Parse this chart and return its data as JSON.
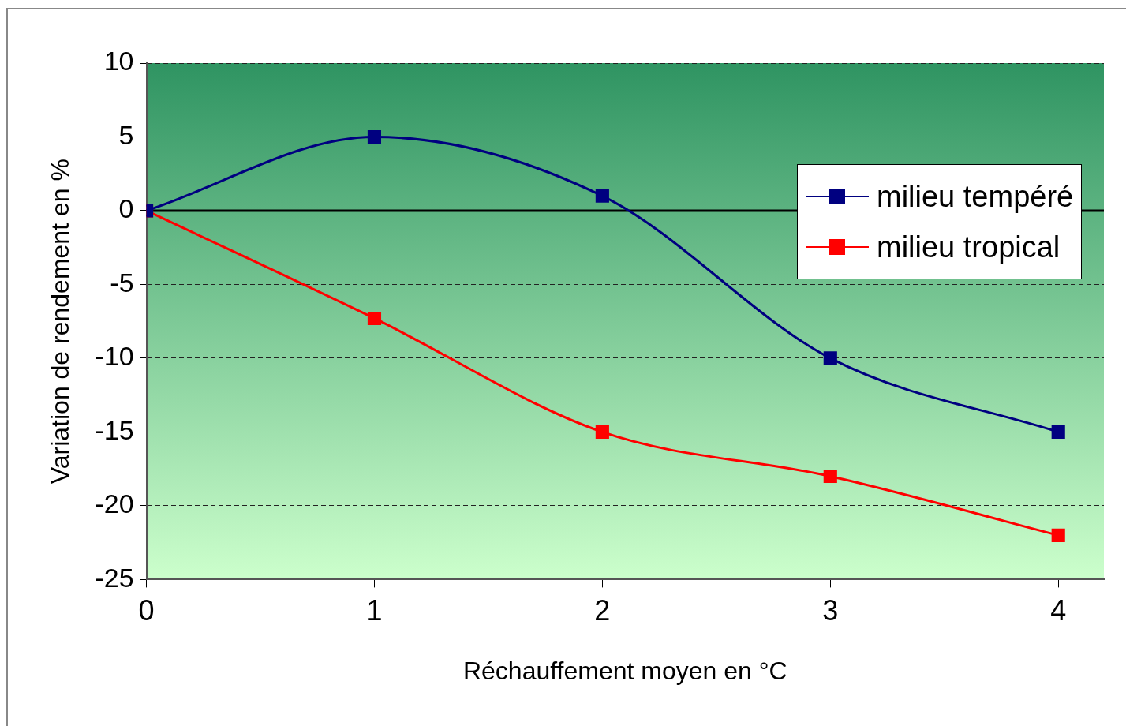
{
  "chart_data": {
    "type": "line",
    "xlabel": "Réchauffement moyen en °C",
    "ylabel": "Variation de rendement en %",
    "x": [
      0,
      1,
      2,
      3,
      4
    ],
    "series": [
      {
        "name": "milieu tempéré",
        "color": "#000080",
        "values": [
          0,
          5,
          1,
          -10,
          -15
        ]
      },
      {
        "name": "milieu tropical",
        "color": "#ff0000",
        "values": [
          0,
          -7.3,
          -15,
          -18,
          -22
        ]
      }
    ],
    "xlim": [
      0,
      4.2
    ],
    "xticks": [
      0,
      1,
      2,
      3,
      4
    ],
    "ylim": [
      -25,
      10
    ],
    "yticks": [
      -25,
      -20,
      -15,
      -10,
      -5,
      0,
      5,
      10
    ],
    "ref_lines": [
      {
        "axis": "y",
        "value": 0,
        "color": "#000000"
      }
    ],
    "grid": "y",
    "line_style": "solid",
    "marker": "square",
    "legend": "top right"
  }
}
